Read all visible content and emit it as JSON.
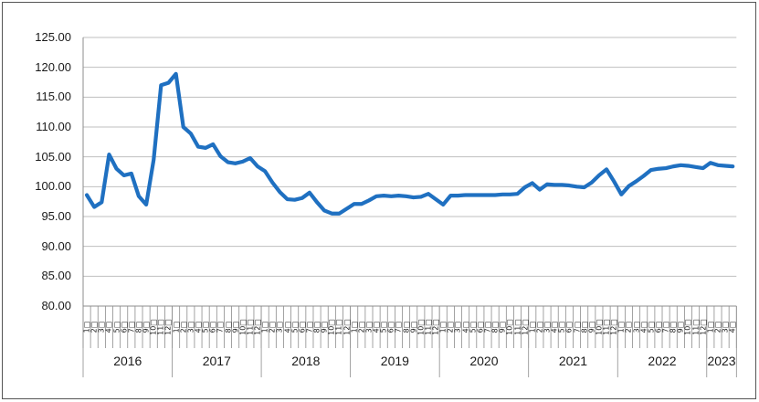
{
  "chart_data": {
    "type": "line",
    "title": "",
    "legend": "none",
    "grid": "horizontal",
    "ylim": [
      80,
      125
    ],
    "ytick_step": 5,
    "ytick_labels": [
      "125.00",
      "120.00",
      "115.00",
      "110.00",
      "105.00",
      "100.00",
      "95.00",
      "90.00",
      "85.00",
      "80.00"
    ],
    "x_axis_levels": [
      "month",
      "year"
    ],
    "month_label_suffix": "□",
    "years": [
      {
        "label": "2016",
        "months": [
          1,
          2,
          3,
          4,
          5,
          6,
          7,
          8,
          9,
          10,
          11,
          12
        ],
        "values": [
          98.6,
          96.6,
          97.4,
          105.4,
          103.0,
          101.9,
          102.2,
          98.4,
          97.0,
          104.5,
          117.0,
          117.4
        ]
      },
      {
        "label": "2017",
        "months": [
          1,
          2,
          3,
          4,
          5,
          6,
          7,
          8,
          9,
          10,
          11,
          12
        ],
        "values": [
          118.9,
          110.0,
          108.9,
          106.7,
          106.5,
          107.1,
          105.1,
          104.1,
          103.9,
          104.2,
          104.8,
          103.4
        ]
      },
      {
        "label": "2018",
        "months": [
          1,
          2,
          3,
          4,
          5,
          6,
          7,
          8,
          9,
          10,
          11,
          12
        ],
        "values": [
          102.6,
          100.7,
          99.1,
          97.9,
          97.8,
          98.1,
          99.0,
          97.4,
          96.0,
          95.5,
          95.5,
          96.3
        ]
      },
      {
        "label": "2019",
        "months": [
          1,
          2,
          3,
          4,
          5,
          6,
          7,
          8,
          9,
          10,
          11,
          12
        ],
        "values": [
          97.1,
          97.1,
          97.7,
          98.4,
          98.5,
          98.4,
          98.5,
          98.4,
          98.2,
          98.3,
          98.8,
          97.9
        ]
      },
      {
        "label": "2020",
        "months": [
          1,
          2,
          3,
          4,
          5,
          6,
          7,
          8,
          9,
          10,
          11,
          12
        ],
        "values": [
          97.0,
          98.5,
          98.5,
          98.6,
          98.6,
          98.6,
          98.6,
          98.6,
          98.7,
          98.7,
          98.8,
          99.9
        ]
      },
      {
        "label": "2021",
        "months": [
          1,
          2,
          3,
          4,
          5,
          6,
          7,
          8,
          9,
          10,
          11,
          12
        ],
        "values": [
          100.6,
          99.5,
          100.4,
          100.3,
          100.3,
          100.2,
          100.0,
          99.9,
          100.7,
          101.9,
          102.9,
          100.9
        ]
      },
      {
        "label": "2022",
        "months": [
          1,
          2,
          3,
          4,
          5,
          6,
          7,
          8,
          9,
          10,
          11,
          12
        ],
        "values": [
          98.7,
          100.1,
          100.9,
          101.8,
          102.8,
          103.0,
          103.1,
          103.4,
          103.6,
          103.5,
          103.3,
          103.1
        ]
      },
      {
        "label": "2023",
        "months": [
          1,
          2,
          3,
          4
        ],
        "values": [
          104.0,
          103.6,
          103.5,
          103.4
        ]
      }
    ],
    "line_color": "#1F70C1",
    "gridline_color": "#BFBFBF",
    "axis_color": "#8C8C8C",
    "border_color": "#555555",
    "text_color": "#1a1a1a"
  }
}
